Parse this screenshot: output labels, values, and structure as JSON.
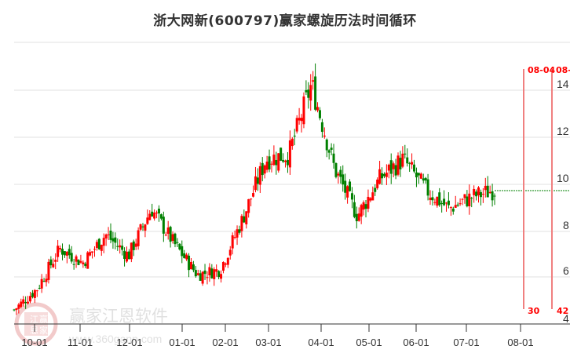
{
  "title": "浙大网新(600797)赢家螺旋历法时间循环",
  "watermark": {
    "name": "赢家江恩软件",
    "url": "www.360gann.com",
    "seal": [
      "江",
      "赢",
      "恩",
      "家"
    ]
  },
  "colors": {
    "up": "#ff0000",
    "down": "#008000",
    "cycle_line": "#f08080",
    "cycle_text": "#ff0000",
    "grid": "#e0e0e0",
    "axis": "#333333",
    "projection": "#008000"
  },
  "chart_data": {
    "type": "candlestick",
    "title": "浙大网新(600797)赢家螺旋历法时间循环",
    "xlabel": "",
    "ylabel": "",
    "ylim": [
      4,
      16
    ],
    "y_ticks": [
      4,
      6,
      8,
      10,
      12,
      14
    ],
    "x_ticks": [
      "10-01",
      "11-01",
      "12-01",
      "01-01",
      "02-01",
      "03-01",
      "04-01",
      "05-01",
      "06-01",
      "07-01",
      "08-01"
    ],
    "grid": true,
    "cycle_lines": [
      {
        "date_label": "08-04",
        "count_label": "30"
      },
      {
        "date_label": "08-",
        "count_label": "42"
      }
    ],
    "last_close_projection": 9.7,
    "approx_closes_by_month": [
      {
        "month": "09-end",
        "value": 4.6
      },
      {
        "month": "10-01",
        "value": 5.5
      },
      {
        "month": "10-mid",
        "value": 7.2
      },
      {
        "month": "11-01",
        "value": 6.6
      },
      {
        "month": "11-mid",
        "value": 7.8
      },
      {
        "month": "12-01",
        "value": 6.9
      },
      {
        "month": "12-mid",
        "value": 8.9
      },
      {
        "month": "01-01",
        "value": 7.4
      },
      {
        "month": "01-mid",
        "value": 6.1
      },
      {
        "month": "02-01",
        "value": 6.3
      },
      {
        "month": "02-mid",
        "value": 8.5
      },
      {
        "month": "03-01",
        "value": 11.0
      },
      {
        "month": "03-mid",
        "value": 11.2
      },
      {
        "month": "03-end",
        "value": 14.2
      },
      {
        "month": "04-01",
        "value": 10.6
      },
      {
        "month": "04-mid",
        "value": 8.6
      },
      {
        "month": "05-01",
        "value": 10.2
      },
      {
        "month": "05-mid",
        "value": 11.0
      },
      {
        "month": "06-01",
        "value": 9.7
      },
      {
        "month": "06-mid",
        "value": 8.9
      },
      {
        "month": "07-01",
        "value": 9.4
      },
      {
        "month": "07-end",
        "value": 9.7
      }
    ]
  },
  "axis": {
    "y_labels": [
      "14",
      "12",
      "10",
      "8",
      "6",
      "4"
    ],
    "x_labels": [
      "10-01",
      "11-01",
      "12-01",
      "01-01",
      "02-01",
      "03-01",
      "04-01",
      "05-01",
      "06-01",
      "07-01",
      "08-01"
    ]
  },
  "cycles": {
    "line1_date": "08-04",
    "line2_date": "08-",
    "line1_count": "30",
    "line2_count": "42"
  }
}
